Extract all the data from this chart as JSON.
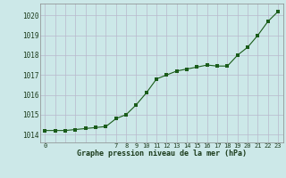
{
  "hours": [
    0,
    1,
    2,
    3,
    4,
    5,
    6,
    7,
    8,
    9,
    10,
    11,
    12,
    13,
    14,
    15,
    16,
    17,
    18,
    19,
    20,
    21,
    22,
    23
  ],
  "pressure": [
    1014.2,
    1014.2,
    1014.2,
    1014.25,
    1014.3,
    1014.35,
    1014.4,
    1014.8,
    1015.0,
    1015.5,
    1016.1,
    1016.8,
    1017.0,
    1017.2,
    1017.3,
    1017.4,
    1017.5,
    1017.45,
    1017.45,
    1018.0,
    1018.4,
    1019.0,
    1019.7,
    1020.2
  ],
  "line_color": "#1a5c1a",
  "marker_color": "#1a5c1a",
  "bg_color": "#cce8e8",
  "grid_color_major": "#b8b8cc",
  "grid_color_minor": "#dcdce8",
  "xlabel": "Graphe pression niveau de la mer (hPa)",
  "ylim": [
    1013.6,
    1020.6
  ],
  "xlim": [
    -0.5,
    23.5
  ],
  "yticks": [
    1014,
    1015,
    1016,
    1017,
    1018,
    1019,
    1020
  ],
  "xtick_show": [
    0,
    7,
    8,
    9,
    10,
    11,
    12,
    13,
    14,
    15,
    16,
    17,
    18,
    19,
    20,
    21,
    22,
    23
  ],
  "font_family": "monospace"
}
